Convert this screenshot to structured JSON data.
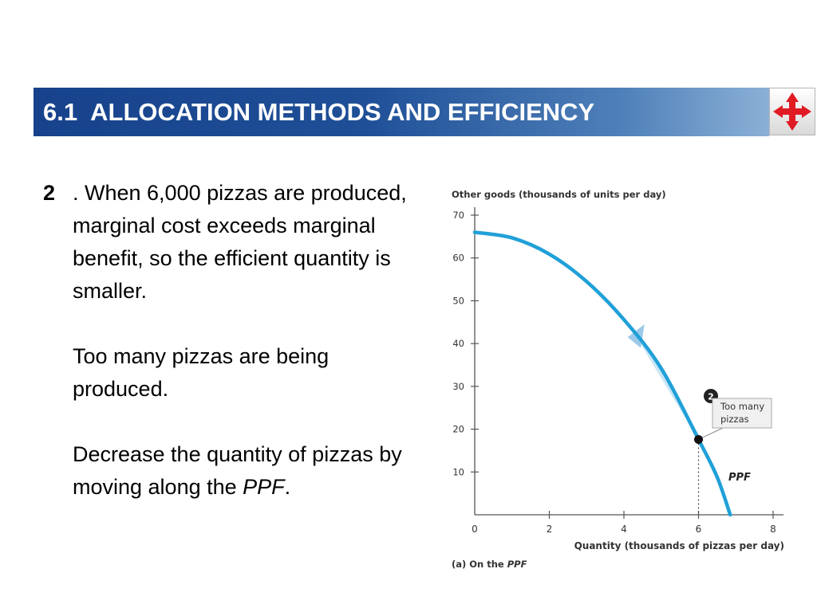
{
  "slide": {
    "title": "6.1  ALLOCATION METHODS AND EFFICIENCY",
    "nav_icon": "four-arrows-icon",
    "accent_color": "#1f4f97"
  },
  "body": {
    "point_number": "2",
    "point_text_1": ". When 6,000 pizzas are produced, marginal cost exceeds marginal benefit, so the efficient quantity is smaller.",
    "point_text_2": "Too many pizzas are being produced.",
    "point_text_3_prefix": "Decrease the quantity of pizzas by moving along the ",
    "point_text_3_italic": "PPF",
    "point_text_3_suffix": "."
  },
  "chart_data": {
    "type": "line",
    "ylabel": "Other goods (thousands of units per day)",
    "xlabel": "Quantity (thousands of pizzas per day)",
    "caption_prefix": "(a) On the ",
    "caption_italic": "PPF",
    "xlim": [
      0,
      8
    ],
    "ylim": [
      0,
      70
    ],
    "x_ticks": [
      0,
      2,
      4,
      6,
      8
    ],
    "y_ticks": [
      10,
      20,
      30,
      40,
      50,
      60,
      70
    ],
    "line_color": "#20a0d8",
    "series": [
      {
        "name": "PPF",
        "x": [
          0,
          1,
          2,
          3,
          4,
          5,
          6,
          6.5,
          6.85
        ],
        "y": [
          66,
          64.7,
          60.9,
          54.5,
          45.6,
          34.2,
          17.6,
          8.8,
          0
        ]
      }
    ],
    "point": {
      "label": "2",
      "x": 6,
      "y": 17.6,
      "annotation_line1": "Too many",
      "annotation_line2": "pizzas"
    }
  }
}
